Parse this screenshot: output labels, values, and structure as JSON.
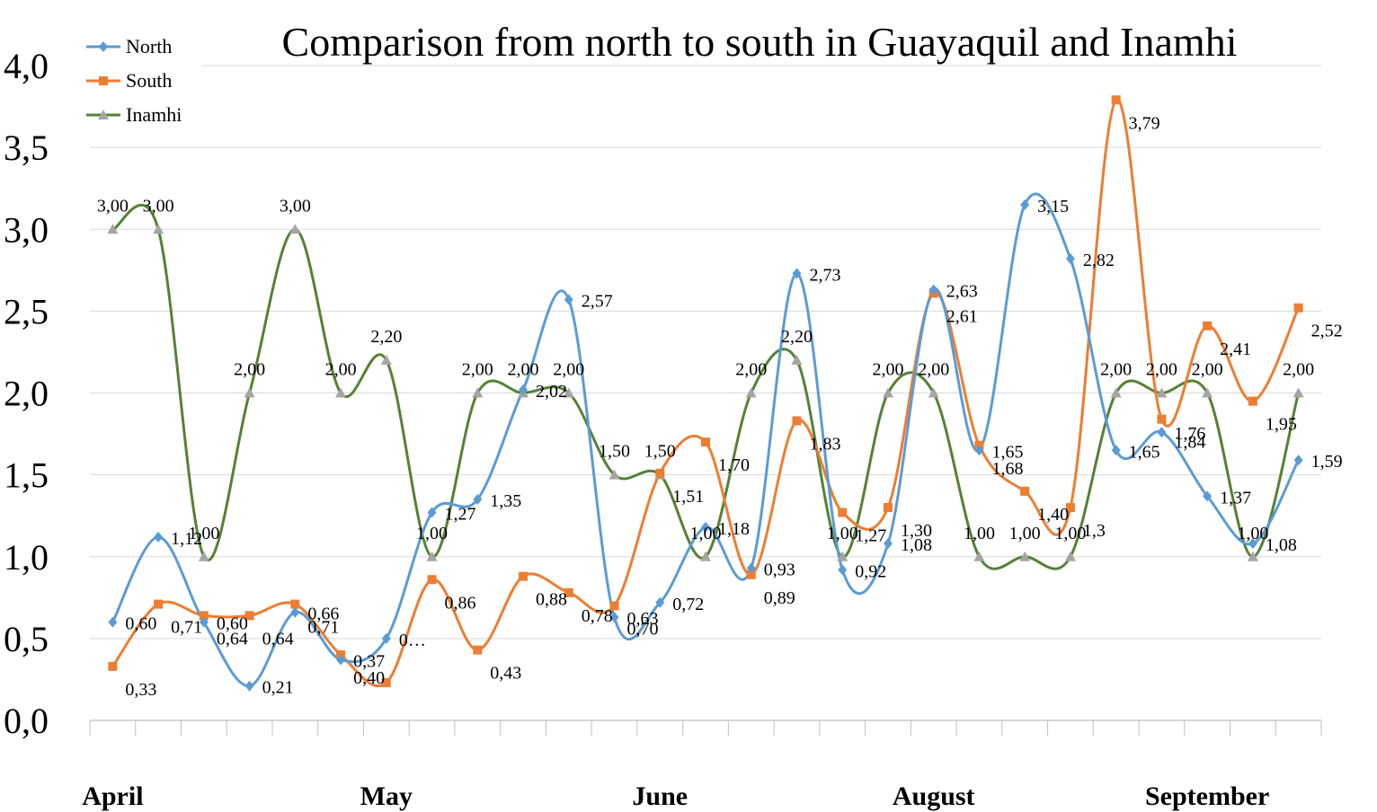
{
  "chart_data": {
    "type": "line",
    "smooth": true,
    "title": "Comparison from north to south in Guayaquil and Inamhi",
    "xlabel": "",
    "ylabel": "",
    "ylim": [
      0,
      4
    ],
    "yticks": [
      "0,0",
      "0,5",
      "1,0",
      "1,5",
      "2,0",
      "2,5",
      "3,0",
      "3,5",
      "4,0"
    ],
    "grid": true,
    "legend_position": "top-left",
    "point_count": 27,
    "month_labels": [
      {
        "label": "April",
        "index": 0
      },
      {
        "label": "May",
        "index": 6
      },
      {
        "label": "June",
        "index": 12
      },
      {
        "label": "August",
        "index": 18
      },
      {
        "label": "September",
        "index": 24
      }
    ],
    "series": [
      {
        "name": "North",
        "color": "#5B9BD5",
        "marker": "diamond",
        "values": [
          0.6,
          1.12,
          0.6,
          0.21,
          0.66,
          0.37,
          0.5,
          1.27,
          1.35,
          2.02,
          2.57,
          0.63,
          0.72,
          1.18,
          0.93,
          2.73,
          0.92,
          1.08,
          2.63,
          1.65,
          3.15,
          2.82,
          1.65,
          1.76,
          1.37,
          1.08,
          1.59
        ],
        "labels": [
          "0,60",
          "1,12",
          "0,60",
          "0,21",
          "0,66",
          "0,37",
          "0…",
          "1,27",
          "1,35",
          "2,02",
          "2,57",
          "0,63",
          "0,72",
          "1,18",
          "0,93",
          "2,73",
          "0,92",
          "1,08",
          "2,63",
          "1,65",
          "3,15",
          "2,82",
          "1,65",
          "1,76",
          "1,37",
          "1,08",
          "1,59"
        ]
      },
      {
        "name": "South",
        "color": "#ED7D31",
        "marker": "square",
        "values": [
          0.33,
          0.71,
          0.64,
          0.64,
          0.71,
          0.4,
          0.23,
          0.86,
          0.43,
          0.88,
          0.78,
          0.7,
          1.51,
          1.7,
          0.89,
          1.83,
          1.27,
          1.3,
          2.61,
          1.68,
          1.4,
          1.3,
          3.79,
          1.84,
          2.41,
          1.95,
          2.52
        ],
        "labels": [
          "0,33",
          "0,71",
          "0,64",
          "0,64",
          "0,71",
          "0,40",
          "",
          "0,86",
          "0,43",
          "0,88",
          "0,78",
          "0,70",
          "1,51",
          "1,70",
          "0,89",
          "1,83",
          "1,27",
          "1,30",
          "2,61",
          "1,68",
          "1,40",
          "1,3",
          "3,79",
          "1,84",
          "2,41",
          "1,95",
          "2,52"
        ]
      },
      {
        "name": "Inamhi",
        "color": "#548235",
        "marker": "triangle",
        "values": [
          3.0,
          3.0,
          1.0,
          2.0,
          3.0,
          2.0,
          2.2,
          1.0,
          2.0,
          2.0,
          2.0,
          1.5,
          1.5,
          1.0,
          2.0,
          2.2,
          1.0,
          2.0,
          2.0,
          1.0,
          1.0,
          1.0,
          2.0,
          2.0,
          2.0,
          1.0,
          2.0
        ],
        "labels": [
          "3,00",
          "3,00",
          "1,00",
          "2,00",
          "3,00",
          "2,00",
          "2,20",
          "1,00",
          "2,00",
          "2,00",
          "2,00",
          "1,50",
          "1,50",
          "1,00",
          "2,00",
          "2,20",
          "1,00",
          "2,00",
          "2,00",
          "1,00",
          "1,00",
          "1,00",
          "2,00",
          "2,00",
          "2,00",
          "1,00",
          "2,00"
        ]
      }
    ]
  }
}
